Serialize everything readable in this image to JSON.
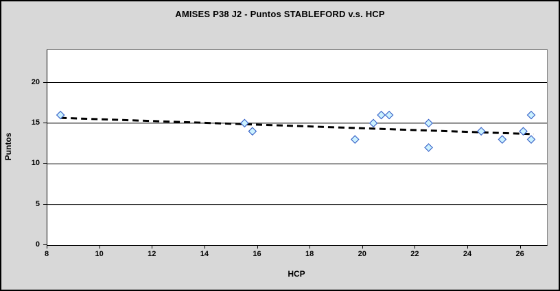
{
  "chart_data": {
    "type": "scatter",
    "title": "AMISES P38 J2 - Puntos STABLEFORD v.s. HCP",
    "xlabel": "HCP",
    "ylabel": "Puntos",
    "xlim": [
      8,
      27
    ],
    "ylim": [
      0,
      24
    ],
    "x_ticks": [
      8,
      10,
      12,
      14,
      16,
      18,
      20,
      22,
      24,
      26
    ],
    "y_ticks": [
      0,
      5,
      10,
      15,
      20
    ],
    "grid": "horizontal-major",
    "legend": "none",
    "points": [
      {
        "x": 8.5,
        "y": 16
      },
      {
        "x": 15.5,
        "y": 15
      },
      {
        "x": 15.8,
        "y": 14
      },
      {
        "x": 19.7,
        "y": 13
      },
      {
        "x": 20.4,
        "y": 15
      },
      {
        "x": 20.7,
        "y": 16
      },
      {
        "x": 21.0,
        "y": 16
      },
      {
        "x": 22.5,
        "y": 15
      },
      {
        "x": 22.5,
        "y": 12
      },
      {
        "x": 24.5,
        "y": 14
      },
      {
        "x": 25.3,
        "y": 13
      },
      {
        "x": 26.1,
        "y": 14
      },
      {
        "x": 26.4,
        "y": 16
      },
      {
        "x": 26.4,
        "y": 13
      }
    ],
    "trendline": {
      "type": "linear",
      "style": "dashed",
      "color": "#000000",
      "start": {
        "x": 8.5,
        "y": 15.65
      },
      "end": {
        "x": 26.5,
        "y": 13.65
      }
    },
    "marker": {
      "shape": "diamond",
      "size": 11,
      "fill": "#ccf2ff",
      "stroke": "#3a64c8"
    },
    "colors": {
      "chart_bg": "#d8d8d8",
      "plot_bg": "#ffffff",
      "plot_border": "#808080",
      "axis_line": "#000000",
      "gridline": "#000000",
      "text": "#000000"
    }
  }
}
